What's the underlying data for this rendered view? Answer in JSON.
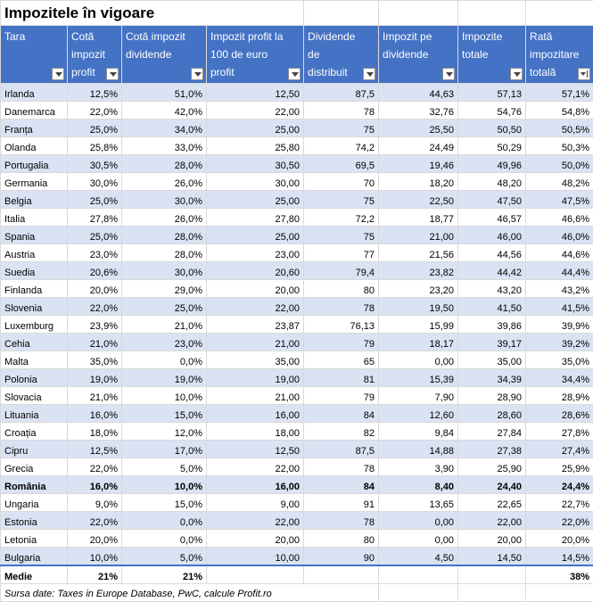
{
  "title": "Impozitele în vigoare",
  "headers": [
    "Tara",
    "Cotă impozit profit",
    "Cotă impozit dividende",
    "Impozit profit la 100 de euro profit",
    "Dividende de distribuit",
    "Impozit pe dividende",
    "Impozite totale",
    "Rată impozitare totală"
  ],
  "rows": [
    {
      "country": "Irlanda",
      "vals": [
        "12,5%",
        "51,0%",
        "12,50",
        "87,5",
        "44,63",
        "57,13",
        "57,1%"
      ]
    },
    {
      "country": "Danemarca",
      "vals": [
        "22,0%",
        "42,0%",
        "22,00",
        "78",
        "32,76",
        "54,76",
        "54,8%"
      ]
    },
    {
      "country": "Franța",
      "vals": [
        "25,0%",
        "34,0%",
        "25,00",
        "75",
        "25,50",
        "50,50",
        "50,5%"
      ]
    },
    {
      "country": "Olanda",
      "vals": [
        "25,8%",
        "33,0%",
        "25,80",
        "74,2",
        "24,49",
        "50,29",
        "50,3%"
      ]
    },
    {
      "country": "Portugalia",
      "vals": [
        "30,5%",
        "28,0%",
        "30,50",
        "69,5",
        "19,46",
        "49,96",
        "50,0%"
      ]
    },
    {
      "country": "Germania",
      "vals": [
        "30,0%",
        "26,0%",
        "30,00",
        "70",
        "18,20",
        "48,20",
        "48,2%"
      ]
    },
    {
      "country": "Belgia",
      "vals": [
        "25,0%",
        "30,0%",
        "25,00",
        "75",
        "22,50",
        "47,50",
        "47,5%"
      ]
    },
    {
      "country": "Italia",
      "vals": [
        "27,8%",
        "26,0%",
        "27,80",
        "72,2",
        "18,77",
        "46,57",
        "46,6%"
      ]
    },
    {
      "country": "Spania",
      "vals": [
        "25,0%",
        "28,0%",
        "25,00",
        "75",
        "21,00",
        "46,00",
        "46,0%"
      ]
    },
    {
      "country": "Austria",
      "vals": [
        "23,0%",
        "28,0%",
        "23,00",
        "77",
        "21,56",
        "44,56",
        "44,6%"
      ]
    },
    {
      "country": "Suedia",
      "vals": [
        "20,6%",
        "30,0%",
        "20,60",
        "79,4",
        "23,82",
        "44,42",
        "44,4%"
      ]
    },
    {
      "country": "Finlanda",
      "vals": [
        "20,0%",
        "29,0%",
        "20,00",
        "80",
        "23,20",
        "43,20",
        "43,2%"
      ]
    },
    {
      "country": "Slovenia",
      "vals": [
        "22,0%",
        "25,0%",
        "22,00",
        "78",
        "19,50",
        "41,50",
        "41,5%"
      ]
    },
    {
      "country": "Luxemburg",
      "vals": [
        "23,9%",
        "21,0%",
        "23,87",
        "76,13",
        "15,99",
        "39,86",
        "39,9%"
      ]
    },
    {
      "country": "Cehia",
      "vals": [
        "21,0%",
        "23,0%",
        "21,00",
        "79",
        "18,17",
        "39,17",
        "39,2%"
      ]
    },
    {
      "country": "Malta",
      "vals": [
        "35,0%",
        "0,0%",
        "35,00",
        "65",
        "0,00",
        "35,00",
        "35,0%"
      ]
    },
    {
      "country": "Polonia",
      "vals": [
        "19,0%",
        "19,0%",
        "19,00",
        "81",
        "15,39",
        "34,39",
        "34,4%"
      ]
    },
    {
      "country": "Slovacia",
      "vals": [
        "21,0%",
        "10,0%",
        "21,00",
        "79",
        "7,90",
        "28,90",
        "28,9%"
      ]
    },
    {
      "country": "Lituania",
      "vals": [
        "16,0%",
        "15,0%",
        "16,00",
        "84",
        "12,60",
        "28,60",
        "28,6%"
      ]
    },
    {
      "country": "Croația",
      "vals": [
        "18,0%",
        "12,0%",
        "18,00",
        "82",
        "9,84",
        "27,84",
        "27,8%"
      ]
    },
    {
      "country": "Cipru",
      "vals": [
        "12,5%",
        "17,0%",
        "12,50",
        "87,5",
        "14,88",
        "27,38",
        "27,4%"
      ]
    },
    {
      "country": "Grecia",
      "vals": [
        "22,0%",
        "5,0%",
        "22,00",
        "78",
        "3,90",
        "25,90",
        "25,9%"
      ]
    },
    {
      "country": "România",
      "vals": [
        "16,0%",
        "10,0%",
        "16,00",
        "84",
        "8,40",
        "24,40",
        "24,4%"
      ],
      "bold": true
    },
    {
      "country": "Ungaria",
      "vals": [
        "9,0%",
        "15,0%",
        "9,00",
        "91",
        "13,65",
        "22,65",
        "22,7%"
      ]
    },
    {
      "country": "Estonia",
      "vals": [
        "22,0%",
        "0,0%",
        "22,00",
        "78",
        "0,00",
        "22,00",
        "22,0%"
      ]
    },
    {
      "country": "Letonia",
      "vals": [
        "20,0%",
        "0,0%",
        "20,00",
        "80",
        "0,00",
        "20,00",
        "20,0%"
      ]
    },
    {
      "country": "Bulgaria",
      "vals": [
        "10,0%",
        "5,0%",
        "10,00",
        "90",
        "4,50",
        "14,50",
        "14,5%"
      ]
    }
  ],
  "average": {
    "label": "Medie",
    "vals": [
      "21%",
      "21%",
      "",
      "",
      "",
      "",
      "38%"
    ]
  },
  "source": "Sursa date: Taxes in Europe Database, PwC, calcule Profit.ro",
  "colors": {
    "header_bg": "#4472c4",
    "band_bg": "#dae3f3",
    "header_text": "#ffffff"
  },
  "icons": {
    "filter": "filter-dropdown-icon",
    "sorted": "sort-descending-filter-icon"
  }
}
